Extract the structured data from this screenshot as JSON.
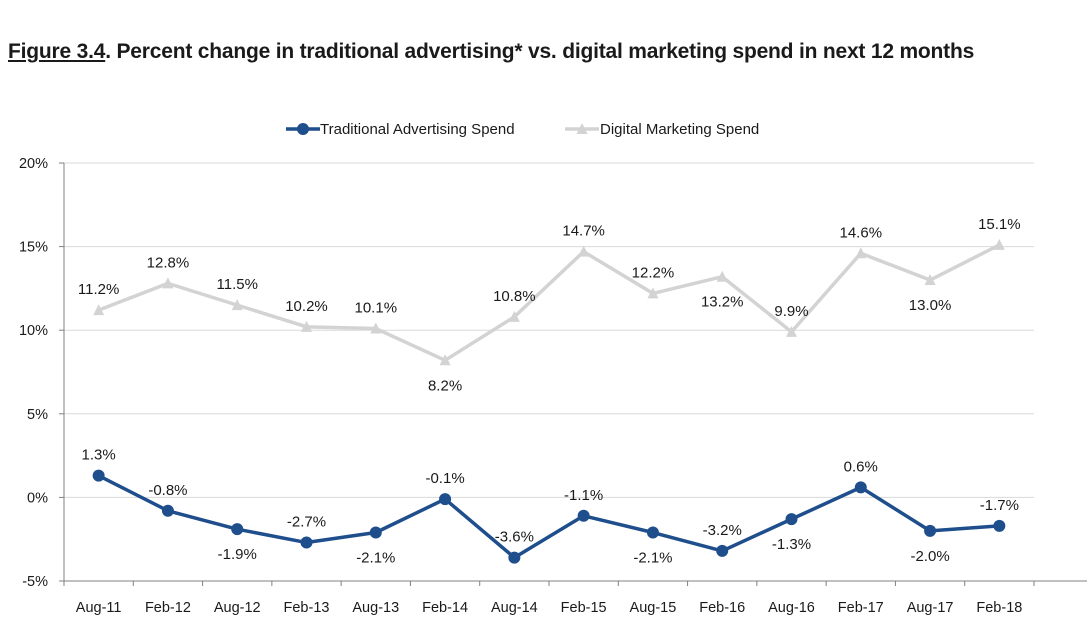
{
  "figure": {
    "label": "Figure 3.4",
    "text": ".  Percent change in traditional advertising* vs. digital marketing spend in next 12 months"
  },
  "chart_data": {
    "type": "line",
    "title": "Figure 3.4. Percent change in traditional advertising* vs. digital marketing spend in next 12 months",
    "categories": [
      "Aug-11",
      "Feb-12",
      "Aug-12",
      "Feb-13",
      "Aug-13",
      "Feb-14",
      "Aug-14",
      "Feb-15",
      "Aug-15",
      "Feb-16",
      "Aug-16",
      "Feb-17",
      "Aug-17",
      "Feb-18"
    ],
    "ylim": [
      -5,
      20
    ],
    "yticks": [
      -5,
      0,
      5,
      10,
      15,
      20
    ],
    "ytick_labels": [
      "-5%",
      "0%",
      "5%",
      "10%",
      "15%",
      "20%"
    ],
    "grid": true,
    "legend_position": "top-center",
    "series": [
      {
        "name": "Traditional Advertising Spend",
        "color": "#1f4e8c",
        "marker": "circle",
        "values": [
          1.3,
          -0.8,
          -1.9,
          -2.7,
          -2.1,
          -0.1,
          -3.6,
          -1.1,
          -2.1,
          -3.2,
          -1.3,
          0.6,
          -2.0,
          -1.7
        ],
        "labels": [
          "1.3%",
          "-0.8%",
          "-1.9%",
          "-2.7%",
          "-2.1%",
          "-0.1%",
          "-3.6%",
          "-1.1%",
          "-2.1%",
          "-3.2%",
          "-1.3%",
          "0.6%",
          "-2.0%",
          "-1.7%"
        ],
        "label_positions": [
          "above",
          "above",
          "below",
          "above",
          "below",
          "above",
          "above",
          "above",
          "below",
          "above",
          "below",
          "above",
          "below",
          "above"
        ]
      },
      {
        "name": "Digital Marketing Spend",
        "color": "#d3d3d3",
        "marker": "triangle",
        "values": [
          11.2,
          12.8,
          11.5,
          10.2,
          10.1,
          8.2,
          10.8,
          14.7,
          12.2,
          13.2,
          9.9,
          14.6,
          13.0,
          15.1
        ],
        "labels": [
          "11.2%",
          "12.8%",
          "11.5%",
          "10.2%",
          "10.1%",
          "8.2%",
          "10.8%",
          "14.7%",
          "12.2%",
          "13.2%",
          "9.9%",
          "14.6%",
          "13.0%",
          "15.1%"
        ],
        "label_positions": [
          "above",
          "above",
          "above",
          "above",
          "above",
          "below",
          "above",
          "above",
          "above",
          "below",
          "above",
          "above",
          "below",
          "above"
        ]
      }
    ]
  }
}
